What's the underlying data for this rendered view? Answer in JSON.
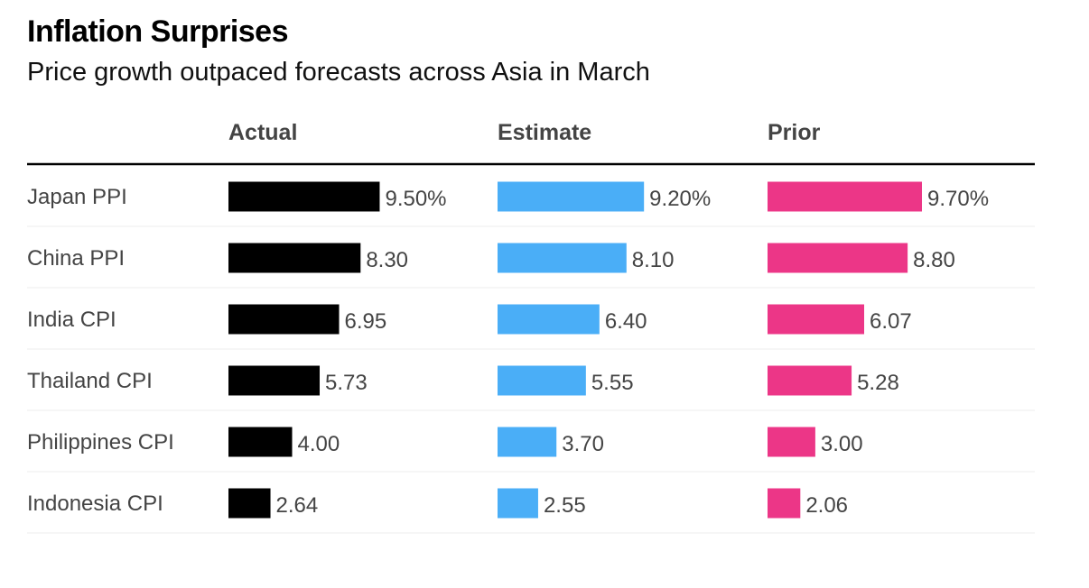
{
  "header": {
    "title": "Inflation Surprises",
    "subtitle": "Price growth outpaced forecasts across Asia in March"
  },
  "chart_data": {
    "type": "bar",
    "orientation": "horizontal",
    "layout": "small-multiples-table",
    "categories": [
      "Japan PPI",
      "China PPI",
      "India CPI",
      "Thailand CPI",
      "Philippines CPI",
      "Indonesia CPI"
    ],
    "series": [
      {
        "name": "Actual",
        "color": "#000000",
        "values": [
          9.5,
          8.3,
          6.95,
          5.73,
          4.0,
          2.64
        ],
        "labels": [
          "9.50%",
          "8.30",
          "6.95",
          "5.73",
          "4.00",
          "2.64"
        ]
      },
      {
        "name": "Estimate",
        "color": "#4aaef7",
        "values": [
          9.2,
          8.1,
          6.4,
          5.55,
          3.7,
          2.55
        ],
        "labels": [
          "9.20%",
          "8.10",
          "6.40",
          "5.55",
          "3.70",
          "2.55"
        ]
      },
      {
        "name": "Prior",
        "color": "#ec3687",
        "values": [
          9.7,
          8.8,
          6.07,
          5.28,
          3.0,
          2.06
        ],
        "labels": [
          "9.70%",
          "8.80",
          "6.07",
          "5.28",
          "3.00",
          "2.06"
        ]
      }
    ],
    "xlim": [
      0,
      9.7
    ],
    "grid": false,
    "legend": "column-headers"
  }
}
